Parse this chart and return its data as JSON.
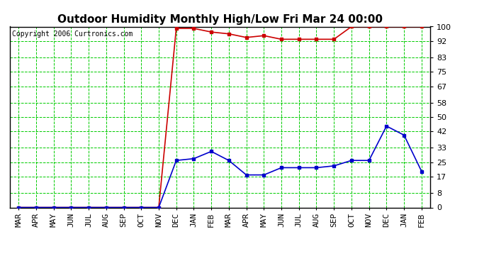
{
  "title": "Outdoor Humidity Monthly High/Low Fri Mar 24 00:00",
  "copyright": "Copyright 2006 Curtronics.com",
  "x_labels": [
    "MAR",
    "APR",
    "MAY",
    "JUN",
    "JUL",
    "AUG",
    "SEP",
    "OCT",
    "NOV",
    "DEC",
    "JAN",
    "FEB",
    "MAR",
    "APR",
    "MAY",
    "JUN",
    "JUL",
    "AUG",
    "SEP",
    "OCT",
    "NOV",
    "DEC",
    "JAN",
    "FEB"
  ],
  "high_values": [
    0,
    0,
    0,
    0,
    0,
    0,
    0,
    0,
    0,
    99,
    99,
    97,
    96,
    94,
    95,
    93,
    93,
    93,
    93,
    100,
    100,
    100,
    100,
    100
  ],
  "low_values": [
    0,
    0,
    0,
    0,
    0,
    0,
    0,
    0,
    0,
    26,
    27,
    31,
    26,
    18,
    18,
    22,
    22,
    22,
    23,
    26,
    26,
    45,
    40,
    20
  ],
  "yticks": [
    0,
    8,
    17,
    25,
    33,
    42,
    50,
    58,
    67,
    75,
    83,
    92,
    100
  ],
  "ylim": [
    0,
    100
  ],
  "bg_color": "#ffffff",
  "plot_bg_color": "#ffffff",
  "grid_color": "#00cc00",
  "high_color": "#cc0000",
  "low_color": "#0000cc",
  "marker": "s",
  "marker_size": 3,
  "title_fontsize": 11,
  "tick_fontsize": 8,
  "copyright_fontsize": 7
}
